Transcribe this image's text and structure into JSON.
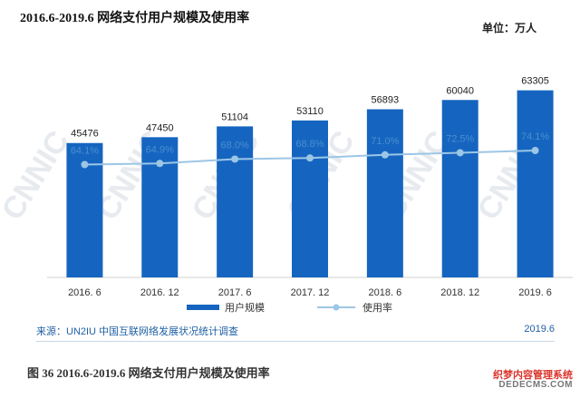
{
  "title": "2016.6-2019.6 网络支付用户规模及使用率",
  "unit_label": "单位：万人",
  "source": "来源：UN2IU 中国互联网络发展状况统计调查",
  "source_date": "2019.6",
  "caption": "图 36 2016.6-2019.6 网络支付用户规模及使用率",
  "watermark": "CNNIC",
  "site_watermark": {
    "name": "织梦内容管理系统",
    "url": "DEDECMS.COM"
  },
  "colors": {
    "bar": "#1565c0",
    "line": "#9cc6e6",
    "rate_label": "#4a8ed0",
    "bar_label": "#222222"
  },
  "chart_data": {
    "type": "bar",
    "categories": [
      "2016. 6",
      "2016. 12",
      "2017. 6",
      "2017. 12",
      "2018. 6",
      "2018. 12",
      "2019. 6"
    ],
    "series": [
      {
        "name": "用户规模",
        "type": "bar",
        "values": [
          45476,
          47450,
          51104,
          53110,
          56893,
          60040,
          63305
        ]
      },
      {
        "name": "使用率",
        "type": "line",
        "values": [
          64.1,
          64.9,
          68.0,
          68.8,
          71.0,
          72.5,
          74.1
        ],
        "labels": [
          "64.1%",
          "64.9%",
          "68.0%",
          "68.8%",
          "71.0%",
          "72.5%",
          "74.1%"
        ]
      }
    ],
    "legend": "bottom-center",
    "grid": false
  }
}
